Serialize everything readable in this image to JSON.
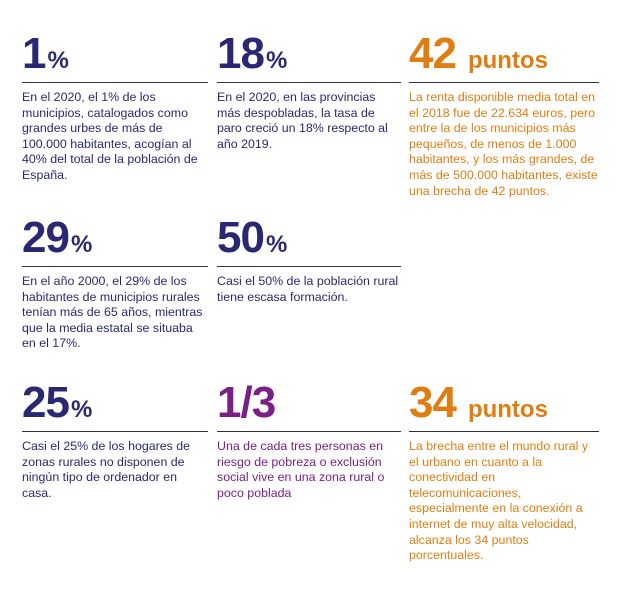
{
  "colors": {
    "navy": "#2a2872",
    "purple": "#7a1f86",
    "orange": "#e07d10"
  },
  "stats": [
    {
      "number": "1",
      "unit": "%",
      "text": "En el 2020, el 1% de los municipios, catalogados como grandes urbes de más de 100.000 habitantes, acogían al 40% del total de la población de España."
    },
    {
      "number": "18",
      "unit": "%",
      "text": "En el 2020, en las provincias más despobladas, la tasa de paro creció un 18% respecto al año 2019."
    },
    {
      "number": "42",
      "unit": "puntos",
      "text": "La renta disponible media total en el 2018 fue de 22.634 euros, pero entre la de los municipios más pequeños, de menos de 1.000 habitantes, y los más grandes, de más de 500.000 habitantes, existe una brecha de 42 puntos."
    },
    {
      "number": "29",
      "unit": "%",
      "text": "En el año 2000, el 29% de los habitantes de municipios rurales tenían más de 65 años, mientras que la media estatal se situaba en el 17%."
    },
    {
      "number": "50",
      "unit": "%",
      "text": "Casi el 50% de la población rural tiene escasa formación."
    },
    {
      "number": "25",
      "unit": "%",
      "text": "Casi el 25% de los hogares de zonas rurales no disponen de ningún tipo de ordenador en casa."
    },
    {
      "number": "1/3",
      "unit": "",
      "text": "Una de cada tres personas en riesgo de pobreza o exclusión social vive en una zona rural o poco poblada"
    },
    {
      "number": "34",
      "unit": "puntos",
      "text": "La brecha entre el mundo rural y el urbano en cuanto a la conectividad en telecomunicaciones, especialmente en la conexión a internet de muy alta velocidad, alcanza los 34 puntos porcentuales."
    }
  ]
}
